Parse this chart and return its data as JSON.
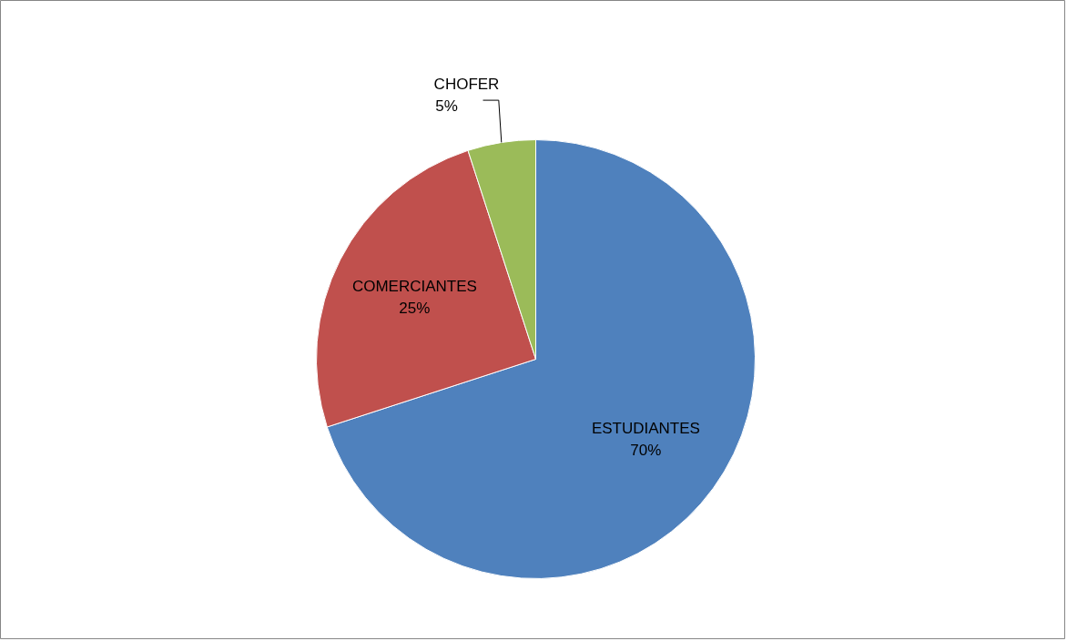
{
  "chart_data": {
    "type": "pie",
    "categories": [
      "ESTUDIANTES",
      "COMERCIANTES",
      "CHOFER"
    ],
    "values": [
      70,
      25,
      5
    ],
    "colors": [
      "#4f81bd",
      "#c0504d",
      "#9bbb59"
    ],
    "value_labels": [
      "70%",
      "25%",
      "5%"
    ]
  }
}
